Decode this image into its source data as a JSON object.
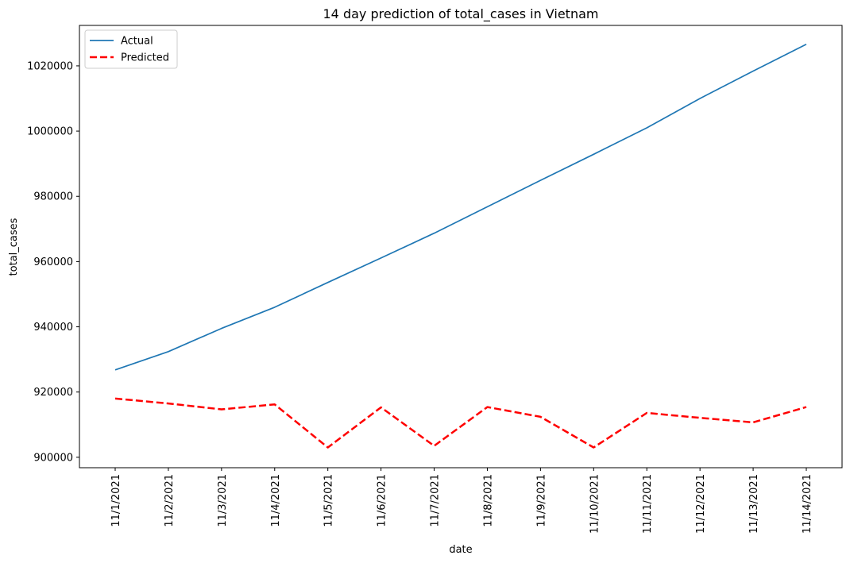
{
  "chart_data": {
    "type": "line",
    "title": "14 day prediction of total_cases in Vietnam",
    "xlabel": "date",
    "ylabel": "total_cases",
    "categories": [
      "11/1/2021",
      "11/2/2021",
      "11/3/2021",
      "11/4/2021",
      "11/5/2021",
      "11/6/2021",
      "11/7/2021",
      "11/8/2021",
      "11/9/2021",
      "11/10/2021",
      "11/11/2021",
      "11/12/2021",
      "11/13/2021",
      "11/14/2021"
    ],
    "series": [
      {
        "name": "Actual",
        "color": "#1f77b4",
        "style": "solid",
        "values": [
          926800,
          932400,
          939500,
          946000,
          953600,
          961100,
          968700,
          976800,
          984900,
          992900,
          1001000,
          1010000,
          1018400,
          1026600
        ]
      },
      {
        "name": "Predicted",
        "color": "#ff0000",
        "style": "dashed",
        "values": [
          918000,
          916500,
          914700,
          916200,
          903000,
          915300,
          903500,
          915400,
          912400,
          903000,
          913600,
          912100,
          910700,
          915400
        ]
      }
    ],
    "yticks": [
      900000,
      920000,
      940000,
      960000,
      980000,
      1000000,
      1020000
    ],
    "ylim": [
      896800,
      1032400
    ],
    "grid": false,
    "legend": "top-left"
  }
}
